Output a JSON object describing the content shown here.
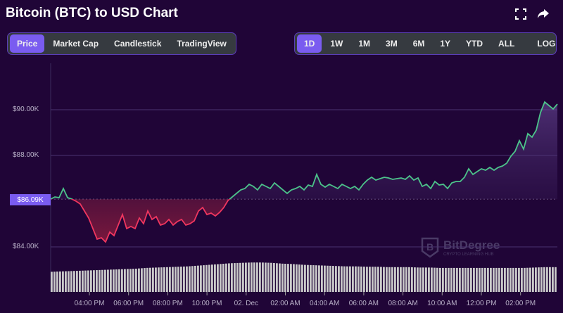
{
  "header": {
    "title": "Bitcoin (BTC) to USD Chart",
    "fullscreen_icon": "fullscreen-icon",
    "share_icon": "share-icon"
  },
  "chart_tabs": [
    {
      "label": "Price",
      "active": true
    },
    {
      "label": "Market Cap"
    },
    {
      "label": "Candlestick"
    },
    {
      "label": "TradingView"
    }
  ],
  "range_tabs": [
    {
      "label": "1D",
      "active": true
    },
    {
      "label": "1W"
    },
    {
      "label": "1M"
    },
    {
      "label": "3M"
    },
    {
      "label": "6M"
    },
    {
      "label": "1Y"
    },
    {
      "label": "YTD"
    },
    {
      "label": "ALL"
    }
  ],
  "log_label": "LOG",
  "watermark": {
    "name": "BitDegree",
    "tagline": "CRYPTO LEARNING HUB"
  },
  "colors": {
    "up": "#4cc38a",
    "down": "#f0365f",
    "accent": "#7a5cf0",
    "bg": "#200537"
  },
  "chart_data": {
    "type": "line",
    "title": "Bitcoin (BTC) to USD Chart",
    "ylim": [
      83500,
      91500
    ],
    "yticks": [
      {
        "value": 90000,
        "label": "$90.00K"
      },
      {
        "value": 88000,
        "label": "$88.00K"
      },
      {
        "value": 84000,
        "label": "$84.00K"
      }
    ],
    "baseline": {
      "value": 86090,
      "label": "$86.09K"
    },
    "xticks": [
      "04:00 PM",
      "06:00 PM",
      "08:00 PM",
      "10:00 PM",
      "02. Dec",
      "02:00 AM",
      "04:00 AM",
      "06:00 AM",
      "08:00 AM",
      "10:00 AM",
      "12:00 PM",
      "02:00 PM"
    ],
    "prices": [
      86092,
      86185,
      86154,
      86554,
      86154,
      86092,
      86000,
      85877,
      85569,
      85261,
      84800,
      84338,
      84400,
      84215,
      84646,
      84492,
      84954,
      85415,
      84800,
      84892,
      84800,
      85261,
      85015,
      85569,
      85200,
      85323,
      84954,
      85015,
      85200,
      84954,
      85108,
      85200,
      84954,
      85015,
      85138,
      85569,
      85723,
      85415,
      85477,
      85354,
      85508,
      85723,
      86031,
      86185,
      86338,
      86492,
      86554,
      86738,
      86646,
      86492,
      86738,
      86646,
      86554,
      86800,
      86646,
      86492,
      86338,
      86492,
      86554,
      86646,
      86492,
      86708,
      86646,
      87169,
      86738,
      86615,
      86738,
      86646,
      86554,
      86738,
      86646,
      86554,
      86646,
      86492,
      86738,
      86923,
      87046,
      86923,
      86985,
      87046,
      87015,
      86954,
      86985,
      87015,
      86954,
      87108,
      86923,
      87015,
      86646,
      86738,
      86554,
      86862,
      86708,
      86738,
      86554,
      86800,
      86862,
      86862,
      87046,
      87415,
      87169,
      87292,
      87415,
      87354,
      87477,
      87354,
      87477,
      87538,
      87662,
      87969,
      88185,
      88646,
      88277,
      88954,
      88800,
      89108,
      89877,
      90338,
      90185,
      90031,
      90246
    ],
    "volume": [
      52,
      53,
      54,
      55,
      56,
      57,
      58,
      59,
      60,
      62,
      63,
      64,
      65,
      66,
      68,
      70,
      72,
      74,
      75,
      76,
      76,
      75,
      73,
      72,
      70,
      69,
      68,
      67,
      66,
      66,
      65,
      65,
      64,
      64,
      64,
      63,
      63,
      62,
      62,
      62,
      62,
      62,
      62,
      62,
      62,
      62,
      63,
      64,
      64
    ]
  }
}
